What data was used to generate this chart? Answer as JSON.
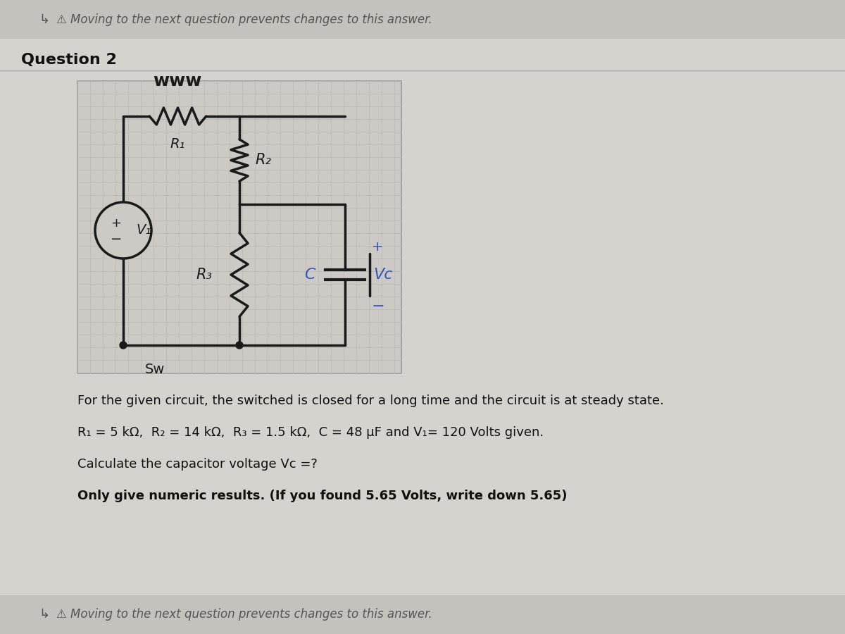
{
  "bg_color": "#d6d2ce",
  "page_bg": "#e8e5e0",
  "circuit_bg": "#cdc9c4",
  "grid_color": "#b8b5b0",
  "black": "#1a1a1a",
  "blue": "#3355bb",
  "top_bar_color": "#c5c1bc",
  "warning_text": "Moving to the next question prevents changes to this answer.",
  "question_label": "Question 2",
  "problem_text_1": "For the given circuit, the switched is closed for a long time and the circuit is at steady state.",
  "problem_text_2": "R₁ = 5 kΩ,  R₂ = 14 kΩ,  R₃ = 1.5 kΩ,  C = 48 µF and V₁= 120 Volts given.",
  "problem_text_3": "Calculate the capacitor voltage Vᴄ =?",
  "problem_text_4": "Only give numeric results. (If you found 5.65 Volts, write down 5.65)",
  "footer_warning": "Moving to the next question prevents changes to this answer."
}
